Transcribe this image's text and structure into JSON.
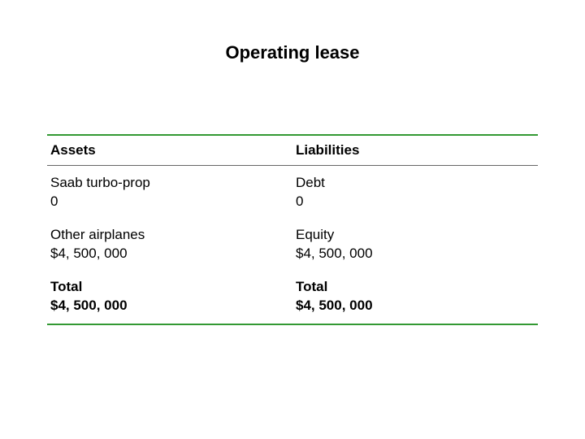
{
  "title": "Operating lease",
  "table": {
    "rule_color": "#339933",
    "rule_width_outer": 2,
    "rule_width_inner": 1,
    "header_border_color": "#666666",
    "headers": {
      "left": "Assets",
      "right": "Liabilities"
    },
    "rows": [
      {
        "left_label": "Saab turbo-prop",
        "left_value": "0",
        "right_label": "Debt",
        "right_value": "0",
        "bold": false
      },
      {
        "left_label": "Other airplanes",
        "left_value": "$4, 500, 000",
        "right_label": "Equity",
        "right_value": "$4, 500, 000",
        "bold": false
      },
      {
        "left_label": "Total",
        "left_value": "$4, 500, 000",
        "right_label": "Total",
        "right_value": "$4, 500, 000",
        "bold": true
      }
    ],
    "font_size_pt": 13,
    "background_color": "#ffffff",
    "text_color": "#000000"
  }
}
